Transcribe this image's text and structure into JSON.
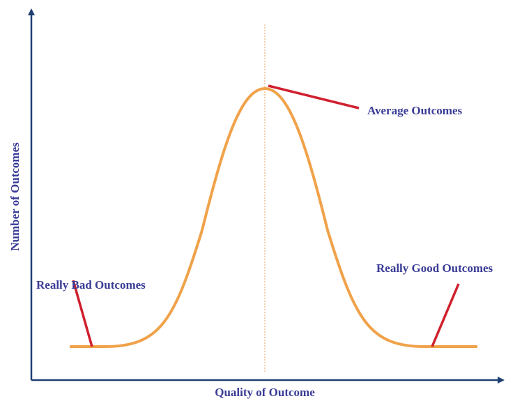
{
  "x_axis_label": "Quality of Outcome",
  "y_axis_label": "Number of Outcomes",
  "annotations": [
    "Average Outcomes",
    "Really Bad Outcomes",
    "Really Good Outcomes"
  ]
}
